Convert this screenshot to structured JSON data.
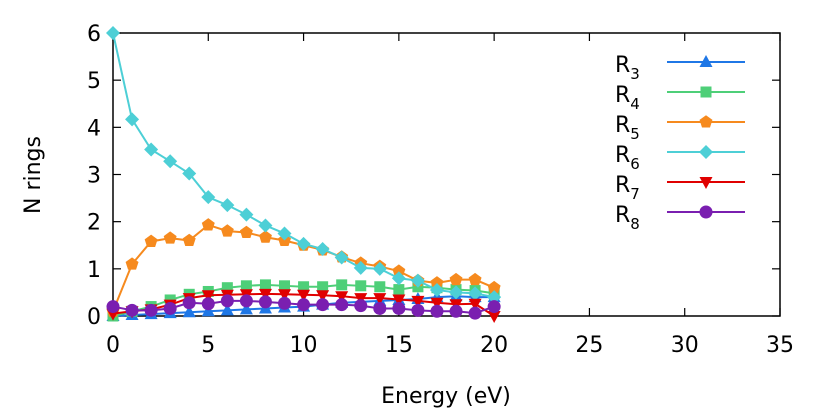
{
  "chart_data": {
    "type": "line",
    "title": "",
    "xlabel": "Energy (eV)",
    "ylabel": "N rings",
    "xlim": [
      0,
      35
    ],
    "ylim": [
      0,
      6
    ],
    "xticks": [
      0,
      5,
      10,
      15,
      20,
      25,
      30,
      35
    ],
    "yticks": [
      0,
      1,
      2,
      3,
      4,
      5,
      6
    ],
    "grid": false,
    "legend_position": "top-right",
    "x": [
      0,
      1,
      2,
      3,
      4,
      5,
      6,
      7,
      8,
      9,
      10,
      11,
      12,
      13,
      14,
      15,
      16,
      17,
      18,
      19,
      20
    ],
    "series": [
      {
        "name": "R",
        "sub": "3",
        "color": "#1f77e6",
        "marker": "triangle-up",
        "values": [
          0.0,
          0.02,
          0.04,
          0.06,
          0.08,
          0.1,
          0.12,
          0.14,
          0.16,
          0.18,
          0.2,
          0.24,
          0.28,
          0.3,
          0.32,
          0.34,
          0.36,
          0.4,
          0.42,
          0.4,
          0.4
        ]
      },
      {
        "name": "R",
        "sub": "4",
        "color": "#4ecf78",
        "marker": "square",
        "values": [
          0.0,
          0.1,
          0.2,
          0.34,
          0.46,
          0.52,
          0.6,
          0.64,
          0.66,
          0.64,
          0.62,
          0.62,
          0.66,
          0.64,
          0.62,
          0.56,
          0.62,
          0.6,
          0.56,
          0.54,
          0.48
        ]
      },
      {
        "name": "R",
        "sub": "5",
        "color": "#f68a1e",
        "marker": "pentagon",
        "values": [
          0.1,
          1.1,
          1.58,
          1.65,
          1.6,
          1.93,
          1.8,
          1.77,
          1.67,
          1.6,
          1.5,
          1.4,
          1.25,
          1.12,
          1.05,
          0.95,
          0.75,
          0.7,
          0.77,
          0.77,
          0.6
        ]
      },
      {
        "name": "R",
        "sub": "6",
        "color": "#4dcfd6",
        "marker": "diamond",
        "values": [
          6.0,
          4.17,
          3.53,
          3.28,
          3.02,
          2.52,
          2.35,
          2.15,
          1.92,
          1.75,
          1.53,
          1.42,
          1.24,
          1.02,
          1.0,
          0.8,
          0.75,
          0.55,
          0.5,
          0.48,
          0.4
        ]
      },
      {
        "name": "R",
        "sub": "7",
        "color": "#e00000",
        "marker": "triangle-down",
        "values": [
          0.05,
          0.1,
          0.14,
          0.24,
          0.38,
          0.44,
          0.45,
          0.46,
          0.47,
          0.46,
          0.45,
          0.44,
          0.42,
          0.38,
          0.38,
          0.35,
          0.32,
          0.28,
          0.25,
          0.26,
          0.0
        ]
      },
      {
        "name": "R",
        "sub": "8",
        "color": "#7a1fb0",
        "marker": "circle",
        "values": [
          0.2,
          0.12,
          0.12,
          0.16,
          0.28,
          0.26,
          0.32,
          0.32,
          0.3,
          0.27,
          0.24,
          0.24,
          0.24,
          0.22,
          0.16,
          0.16,
          0.12,
          0.1,
          0.1,
          0.06,
          0.2
        ]
      }
    ]
  }
}
